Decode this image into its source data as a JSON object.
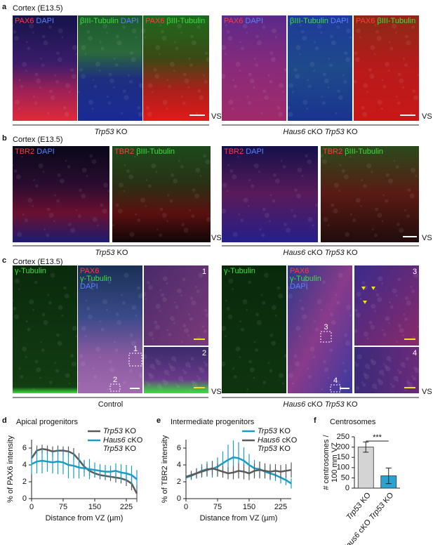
{
  "panels": [
    {
      "letter": "a",
      "heading": "Cortex (E13.5)",
      "groups": [
        {
          "caption": "Trp53 KO",
          "end": "VS",
          "images": [
            {
              "label": [
                {
                  "text": "PAX6",
                  "color": "#ff3b3b"
                },
                {
                  "text": "DAPI",
                  "color": "#5a82ff"
                }
              ]
            },
            {
              "label": [
                {
                  "text": "βIII-Tubulin",
                  "color": "#3ce03c"
                },
                {
                  "text": "DAPI",
                  "color": "#5a82ff"
                }
              ]
            },
            {
              "label": [
                {
                  "text": "PAX6",
                  "color": "#ff3b3b"
                },
                {
                  "text": "βIII-Tubulin",
                  "color": "#3ce03c"
                }
              ]
            }
          ]
        },
        {
          "caption": "Haus6 cKO Trp53 KO",
          "end": "VS",
          "images": [
            {
              "label": [
                {
                  "text": "PAX6",
                  "color": "#ff3b3b"
                },
                {
                  "text": "DAPI",
                  "color": "#5a82ff"
                }
              ]
            },
            {
              "label": [
                {
                  "text": "βIII-Tubulin",
                  "color": "#3ce03c"
                },
                {
                  "text": "DAPI",
                  "color": "#5a82ff"
                }
              ]
            },
            {
              "label": [
                {
                  "text": "PAX6",
                  "color": "#ff3b3b"
                },
                {
                  "text": "βIII-Tubulin",
                  "color": "#3ce03c"
                }
              ]
            }
          ]
        }
      ]
    },
    {
      "letter": "b",
      "heading": "Cortex (E13.5)",
      "groups": [
        {
          "caption": "Trp53 KO",
          "end": "VS",
          "images": [
            {
              "label": [
                {
                  "text": "TBR2",
                  "color": "#ff3b3b"
                },
                {
                  "text": "DAPI",
                  "color": "#5a82ff"
                }
              ]
            },
            {
              "label": [
                {
                  "text": "TBR2",
                  "color": "#ff3b3b"
                },
                {
                  "text": "βIII-Tubulin",
                  "color": "#3ce03c"
                }
              ]
            }
          ]
        },
        {
          "caption": "Haus6 cKO Trp53 KO",
          "end": "VS",
          "images": [
            {
              "label": [
                {
                  "text": "TBR2",
                  "color": "#ff3b3b"
                },
                {
                  "text": "DAPI",
                  "color": "#5a82ff"
                }
              ]
            },
            {
              "label": [
                {
                  "text": "TBR2",
                  "color": "#ff3b3b"
                },
                {
                  "text": "βIII-Tubulin",
                  "color": "#3ce03c"
                }
              ]
            }
          ]
        }
      ]
    },
    {
      "letter": "c",
      "heading": "Cortex (E13.5)",
      "groups": [
        {
          "caption": "Control",
          "end": "VS",
          "images": [
            {
              "label": [
                {
                  "text": "γ-Tubulin",
                  "color": "#3ce03c"
                }
              ]
            },
            {
              "label": [
                {
                  "text": "PAX6",
                  "color": "#ff3b3b"
                },
                {
                  "text": "γ-Tubulin",
                  "color": "#3ce03c"
                },
                {
                  "text": "DAPI",
                  "color": "#5a82ff"
                }
              ],
              "boxes": [
                "1",
                "2"
              ]
            },
            {
              "inset": "1"
            },
            {
              "inset": "2"
            }
          ]
        },
        {
          "caption": "Haus6 cKO Trp53 KO",
          "end": "VS",
          "images": [
            {
              "label": [
                {
                  "text": "γ-Tubulin",
                  "color": "#3ce03c"
                }
              ]
            },
            {
              "label": [
                {
                  "text": "PAX6",
                  "color": "#ff3b3b"
                },
                {
                  "text": "γ-Tubulin",
                  "color": "#3ce03c"
                },
                {
                  "text": "DAPI",
                  "color": "#5a82ff"
                }
              ],
              "boxes": [
                "3",
                "4"
              ]
            },
            {
              "inset": "3"
            },
            {
              "inset": "4"
            }
          ]
        }
      ]
    }
  ],
  "chart_data": [
    {
      "type": "line",
      "panel": "d",
      "title": "Apical progenitors",
      "xlabel": "Distance from VZ (µm)",
      "ylabel": "% of PAX6 intensity",
      "x": [
        0,
        12.5,
        25,
        37.5,
        50,
        62.5,
        75,
        87.5,
        100,
        112.5,
        125,
        137.5,
        150,
        162.5,
        175,
        187.5,
        200,
        212.5,
        225,
        237.5,
        250
      ],
      "xlim": [
        0,
        250
      ],
      "xticks": [
        0,
        75,
        150,
        225
      ],
      "ylim": [
        0,
        7
      ],
      "yticks": [
        0,
        2,
        4,
        6
      ],
      "series": [
        {
          "name": "Trp53 KO",
          "color": "#5a5a5a",
          "values": [
            4.8,
            5.7,
            5.9,
            5.8,
            5.6,
            5.7,
            5.7,
            5.6,
            5.3,
            4.6,
            3.8,
            3.3,
            3.0,
            2.8,
            2.7,
            2.6,
            2.5,
            2.4,
            2.2,
            1.8,
            0.6
          ],
          "errors": [
            0.5,
            0.6,
            0.5,
            0.5,
            0.6,
            0.6,
            0.5,
            0.6,
            0.7,
            0.8,
            0.7,
            0.6,
            0.5,
            0.5,
            0.5,
            0.5,
            0.6,
            0.6,
            0.7,
            0.8,
            1.0
          ]
        },
        {
          "name": "Haus6 cKO Trp53 KO",
          "color": "#1a9cc4",
          "values": [
            4.1,
            4.4,
            4.5,
            4.4,
            4.3,
            4.4,
            4.3,
            4.0,
            3.9,
            3.7,
            3.6,
            3.5,
            3.4,
            3.3,
            3.2,
            3.2,
            3.3,
            3.1,
            3.0,
            2.8,
            2.3
          ],
          "errors": [
            1.2,
            1.4,
            1.5,
            1.2,
            1.3,
            1.5,
            1.4,
            1.6,
            1.5,
            1.3,
            1.0,
            1.2,
            0.9,
            0.8,
            0.8,
            0.7,
            0.9,
            1.0,
            1.0,
            1.1,
            1.1
          ]
        }
      ]
    },
    {
      "type": "line",
      "panel": "e",
      "title": "Intermediate progenitors",
      "xlabel": "Distance from VZ (µm)",
      "ylabel": "% of TBR2 intensity",
      "x": [
        0,
        12.5,
        25,
        37.5,
        50,
        62.5,
        75,
        87.5,
        100,
        112.5,
        125,
        137.5,
        150,
        162.5,
        175,
        187.5,
        200,
        212.5,
        225,
        237.5,
        250
      ],
      "xlim": [
        0,
        250
      ],
      "xticks": [
        0,
        75,
        150,
        225
      ],
      "ylim": [
        0,
        7
      ],
      "yticks": [
        0,
        2,
        4,
        6
      ],
      "series": [
        {
          "name": "Trp53 KO",
          "color": "#1a9cc4",
          "values": [
            2.5,
            2.7,
            3.0,
            3.3,
            3.5,
            3.5,
            3.8,
            4.2,
            4.6,
            4.9,
            4.8,
            4.5,
            4.0,
            3.6,
            3.5,
            3.2,
            3.0,
            2.8,
            2.5,
            2.2,
            1.8
          ],
          "errors": [
            0.4,
            0.5,
            0.6,
            0.8,
            0.9,
            1.0,
            1.1,
            1.4,
            1.8,
            2.0,
            1.9,
            1.6,
            1.3,
            1.0,
            0.9,
            0.8,
            0.8,
            0.7,
            0.7,
            0.6,
            0.6
          ]
        },
        {
          "name": "Haus6 cKO Trp53 KO",
          "color": "#5a5a5a",
          "values": [
            2.6,
            2.8,
            3.0,
            3.2,
            3.4,
            3.6,
            3.4,
            3.2,
            3.0,
            3.1,
            3.3,
            3.2,
            3.0,
            3.3,
            3.4,
            3.3,
            3.2,
            3.3,
            3.2,
            3.3,
            3.4
          ],
          "errors": [
            0.4,
            0.5,
            0.6,
            0.6,
            0.7,
            0.8,
            0.8,
            0.7,
            0.7,
            0.8,
            0.9,
            0.9,
            0.8,
            0.9,
            1.0,
            0.9,
            0.9,
            0.8,
            0.8,
            0.8,
            0.9
          ]
        }
      ]
    },
    {
      "type": "bar",
      "panel": "f",
      "title": "Centrosomes",
      "ylabel": [
        "# centrosomes /",
        "100 mm VZ"
      ],
      "categories": [
        "Trp53 KO",
        "Haus6 cKO Trp53 KO"
      ],
      "values": [
        200,
        60
      ],
      "errors": [
        25,
        38
      ],
      "colors": [
        "#d4d4d4",
        "#2aa3d3"
      ],
      "ylim": [
        0,
        250
      ],
      "yticks": [
        0,
        50,
        100,
        150,
        200,
        250
      ],
      "annotation": "***"
    }
  ]
}
